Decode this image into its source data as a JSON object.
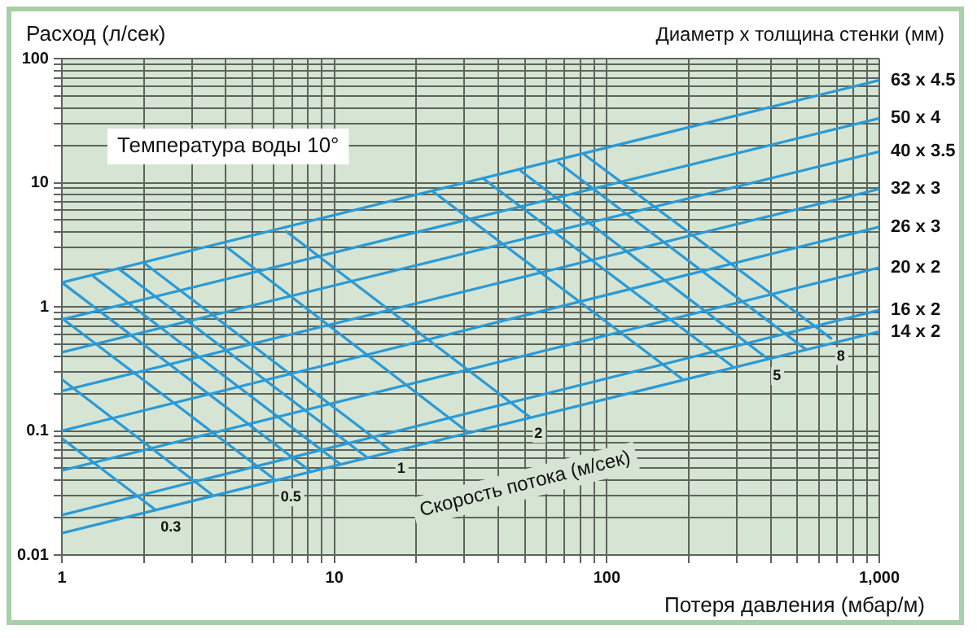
{
  "chart_data": {
    "type": "line",
    "xlabel": "Потеря давления (мбар/м)",
    "ylabel": "Расход (л/сек)",
    "legend_title": "Диаметр х толщина стенки (мм)",
    "log": "xy",
    "grid": true,
    "legend": false,
    "xlim": [
      1,
      1000
    ],
    "ylim": [
      0.01,
      100
    ],
    "xticks": [
      1,
      {
        "value": 2,
        "label": null
      },
      {
        "value": 3,
        "label": null
      },
      {
        "value": 4,
        "label": null
      },
      {
        "value": 5,
        "label": null
      },
      {
        "value": 6,
        "label": null
      },
      {
        "value": 7,
        "label": null
      },
      {
        "value": 8,
        "label": null
      },
      {
        "value": 9,
        "label": null
      },
      10,
      {
        "value": 20,
        "label": null
      },
      {
        "value": 30,
        "label": null
      },
      {
        "value": 40,
        "label": null
      },
      {
        "value": 50,
        "label": null
      },
      {
        "value": 60,
        "label": null
      },
      {
        "value": 70,
        "label": null
      },
      {
        "value": 80,
        "label": null
      },
      {
        "value": 90,
        "label": null
      },
      100,
      {
        "value": 200,
        "label": null
      },
      {
        "value": 300,
        "label": null
      },
      {
        "value": 400,
        "label": null
      },
      {
        "value": 500,
        "label": null
      },
      {
        "value": 600,
        "label": null
      },
      {
        "value": 700,
        "label": null
      },
      {
        "value": 800,
        "label": null
      },
      {
        "value": 900,
        "label": null
      },
      {
        "value": 1000,
        "label": "1,000"
      }
    ],
    "yticks": [
      0.01,
      {
        "value": 0.02,
        "label": null
      },
      {
        "value": 0.03,
        "label": null
      },
      {
        "value": 0.04,
        "label": null
      },
      {
        "value": 0.05,
        "label": null
      },
      {
        "value": 0.06,
        "label": null
      },
      {
        "value": 0.07,
        "label": null
      },
      {
        "value": 0.08,
        "label": null
      },
      {
        "value": 0.09,
        "label": null
      },
      0.1,
      {
        "value": 0.2,
        "label": null
      },
      {
        "value": 0.3,
        "label": null
      },
      {
        "value": 0.4,
        "label": null
      },
      {
        "value": 0.5,
        "label": null
      },
      {
        "value": 0.6,
        "label": null
      },
      {
        "value": 0.7,
        "label": null
      },
      {
        "value": 0.8,
        "label": null
      },
      {
        "value": 0.9,
        "label": null
      },
      1,
      {
        "value": 2,
        "label": null
      },
      {
        "value": 3,
        "label": null
      },
      {
        "value": 4,
        "label": null
      },
      {
        "value": 5,
        "label": null
      },
      {
        "value": 6,
        "label": null
      },
      {
        "value": 7,
        "label": null
      },
      {
        "value": 8,
        "label": null
      },
      {
        "value": 9,
        "label": null
      },
      10,
      {
        "value": 20,
        "label": null
      },
      {
        "value": 30,
        "label": null
      },
      {
        "value": 40,
        "label": null
      },
      {
        "value": 50,
        "label": null
      },
      {
        "value": 60,
        "label": null
      },
      {
        "value": 70,
        "label": null
      },
      {
        "value": 80,
        "label": null
      },
      {
        "value": 90,
        "label": null
      },
      100
    ],
    "series": [
      {
        "name": "63 x 4.5",
        "color": "#2a9ad6",
        "x": [
          1,
          1000
        ],
        "values": [
          1.57,
          67
        ]
      },
      {
        "name": "50 x 4",
        "color": "#2a9ad6",
        "x": [
          1,
          1000
        ],
        "values": [
          0.79,
          33
        ]
      },
      {
        "name": "40 x 3.5",
        "color": "#2a9ad6",
        "x": [
          1,
          1000
        ],
        "values": [
          0.43,
          17.8
        ]
      },
      {
        "name": "32 x 3",
        "color": "#2a9ad6",
        "x": [
          1,
          1000
        ],
        "values": [
          0.21,
          8.9
        ]
      },
      {
        "name": "26 x 3",
        "color": "#2a9ad6",
        "x": [
          1,
          1000
        ],
        "values": [
          0.1,
          4.4
        ]
      },
      {
        "name": "20 x 2",
        "color": "#2a9ad6",
        "x": [
          1,
          1000
        ],
        "values": [
          0.048,
          2.07
        ]
      },
      {
        "name": "16 x 2",
        "color": "#2a9ad6",
        "x": [
          1,
          1000
        ],
        "values": [
          0.021,
          0.94
        ]
      },
      {
        "name": "14 x 2",
        "color": "#2a9ad6",
        "x": [
          1,
          1000
        ],
        "values": [
          0.015,
          0.63
        ]
      },
      {
        "color": "#2a9ad6",
        "x": [
          1,
          2.21
        ],
        "values": [
          0.087,
          0.023
        ]
      },
      {
        "color": "#2a9ad6",
        "x": [
          1,
          3.6
        ],
        "values": [
          0.26,
          0.03
        ]
      },
      {
        "color": "#2a9ad6",
        "x": [
          1,
          6.1
        ],
        "values": [
          0.81,
          0.04
        ]
      },
      {
        "color": "#2a9ad6",
        "x": [
          1,
          8.2
        ],
        "values": [
          1.57,
          0.047
        ]
      },
      {
        "color": "#2a9ad6",
        "x": [
          1.3,
          10.5
        ],
        "values": [
          1.77,
          0.054
        ]
      },
      {
        "color": "#2a9ad6",
        "x": [
          1.6,
          13.2
        ],
        "values": [
          2.06,
          0.061
        ]
      },
      {
        "color": "#2a9ad6",
        "x": [
          2,
          16.3
        ],
        "values": [
          2.26,
          0.068
        ]
      },
      {
        "color": "#2a9ad6",
        "x": [
          4,
          31
        ],
        "values": [
          3.06,
          0.097
        ]
      },
      {
        "color": "#2a9ad6",
        "x": [
          6.6,
          52
        ],
        "values": [
          4.1,
          0.13
        ]
      },
      {
        "color": "#2a9ad6",
        "x": [
          23,
          190
        ],
        "values": [
          8.5,
          0.26
        ]
      },
      {
        "color": "#2a9ad6",
        "x": [
          35,
          290
        ],
        "values": [
          10.9,
          0.33
        ]
      },
      {
        "color": "#2a9ad6",
        "x": [
          48,
          390
        ],
        "values": [
          12.6,
          0.38
        ]
      },
      {
        "color": "#2a9ad6",
        "x": [
          66,
          540
        ],
        "values": [
          14.7,
          0.45
        ]
      },
      {
        "color": "#2a9ad6",
        "x": [
          82,
          670
        ],
        "values": [
          17.1,
          0.55
        ]
      }
    ],
    "annotations": [
      "Температура воды 10°",
      "Скорость потока (м/сек)",
      {
        "text": "0.3",
        "x": 2.21,
        "y": 0.023
      },
      {
        "text": "0.5",
        "x": 6.1,
        "y": 0.04
      },
      {
        "text": "1",
        "x": 16.3,
        "y": 0.068
      },
      {
        "text": "2",
        "x": 52,
        "y": 0.13
      },
      {
        "text": "5",
        "x": 390,
        "y": 0.38
      },
      {
        "text": "8",
        "x": 670,
        "y": 0.55
      }
    ]
  }
}
